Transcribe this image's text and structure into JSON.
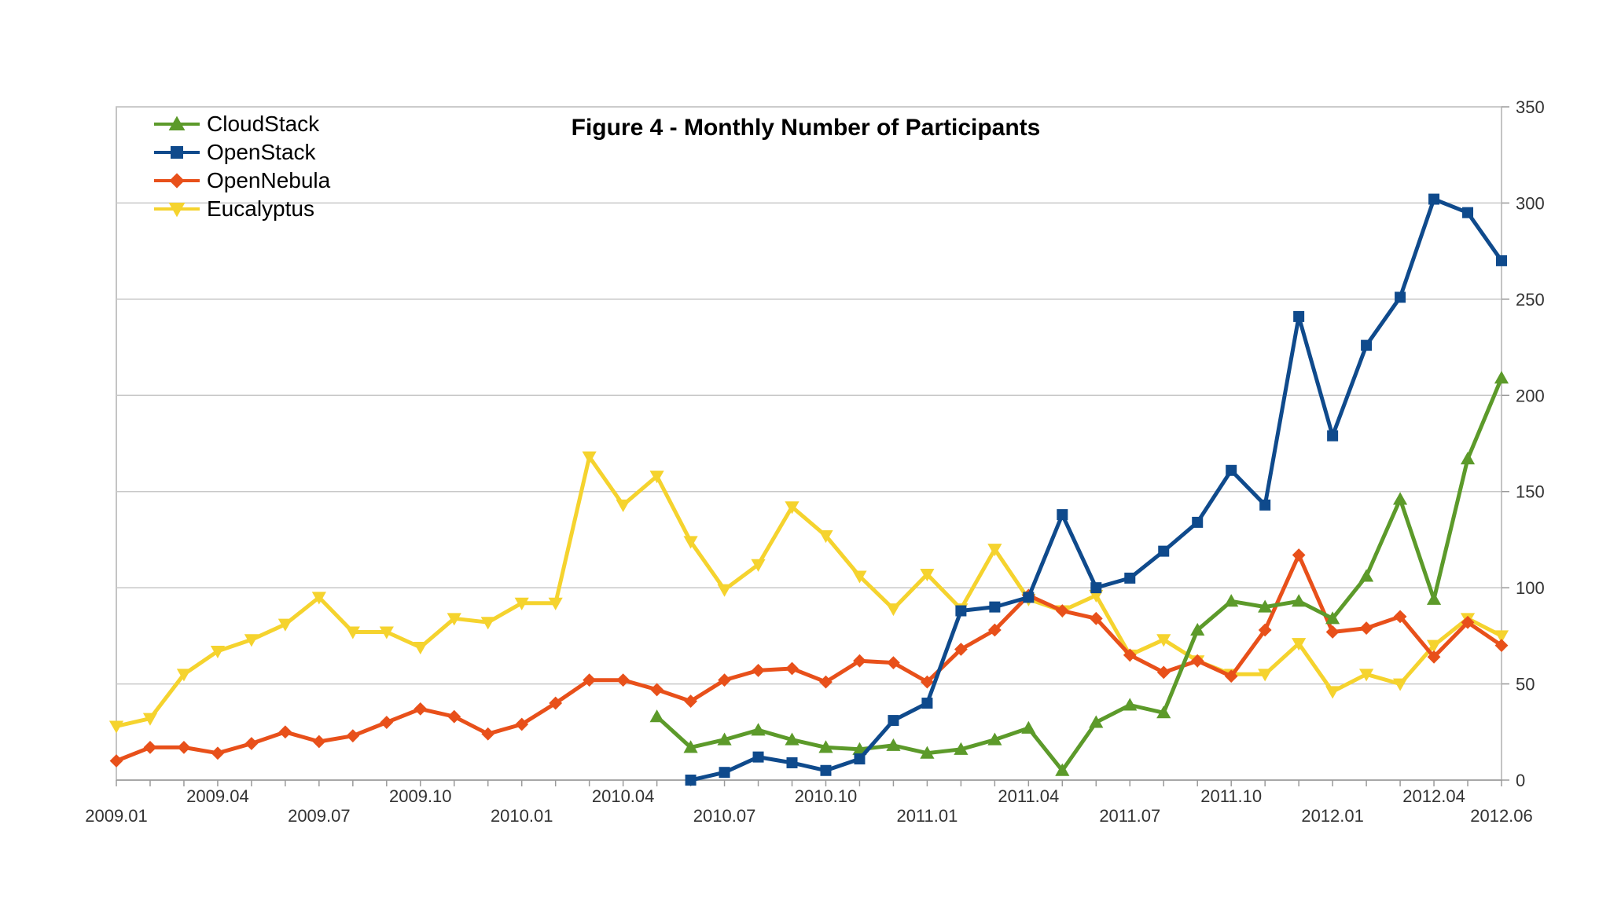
{
  "chart_data": {
    "type": "line",
    "title": "Figure 4 - Monthly Number of Participants",
    "xlabel": "",
    "ylabel": "",
    "ylim": [
      0,
      350
    ],
    "yticks": [
      0,
      50,
      100,
      150,
      200,
      250,
      300,
      350
    ],
    "y_axis_side": "right",
    "grid": true,
    "legend_position": "top-left",
    "x_tick_labels": [
      "2009.01",
      "2009.04",
      "2009.07",
      "2009.10",
      "2010.01",
      "2010.04",
      "2010.07",
      "2010.10",
      "2011.01",
      "2011.04",
      "2011.07",
      "2011.10",
      "2012.01",
      "2012.04",
      "2012.06"
    ],
    "x": [
      "2009.01",
      "2009.02",
      "2009.03",
      "2009.04",
      "2009.05",
      "2009.06",
      "2009.07",
      "2009.08",
      "2009.09",
      "2009.10",
      "2009.11",
      "2009.12",
      "2010.01",
      "2010.02",
      "2010.03",
      "2010.04",
      "2010.05",
      "2010.06",
      "2010.07",
      "2010.08",
      "2010.09",
      "2010.10",
      "2010.11",
      "2010.12",
      "2011.01",
      "2011.02",
      "2011.03",
      "2011.04",
      "2011.05",
      "2011.06",
      "2011.07",
      "2011.08",
      "2011.09",
      "2011.10",
      "2011.11",
      "2011.12",
      "2012.01",
      "2012.02",
      "2012.03",
      "2012.04",
      "2012.05",
      "2012.06"
    ],
    "series": [
      {
        "name": "CloudStack",
        "color": "#5c9a2a",
        "marker": "triangle-up",
        "values": [
          null,
          null,
          null,
          null,
          null,
          null,
          null,
          null,
          null,
          null,
          null,
          null,
          null,
          null,
          null,
          null,
          33,
          17,
          21,
          26,
          21,
          17,
          16,
          18,
          14,
          16,
          21,
          27,
          5,
          30,
          39,
          35,
          78,
          93,
          90,
          93,
          84,
          106,
          146,
          94,
          167,
          209
        ]
      },
      {
        "name": "OpenStack",
        "color": "#0f4a8c",
        "marker": "square",
        "values": [
          null,
          null,
          null,
          null,
          null,
          null,
          null,
          null,
          null,
          null,
          null,
          null,
          null,
          null,
          null,
          null,
          null,
          0,
          4,
          12,
          9,
          5,
          11,
          31,
          40,
          88,
          90,
          95,
          138,
          100,
          105,
          119,
          134,
          161,
          143,
          241,
          179,
          226,
          251,
          302,
          295,
          270
        ]
      },
      {
        "name": "OpenNebula",
        "color": "#e8501a",
        "marker": "diamond",
        "values": [
          10,
          17,
          17,
          14,
          19,
          25,
          20,
          23,
          30,
          37,
          33,
          24,
          29,
          40,
          52,
          52,
          47,
          41,
          52,
          57,
          58,
          51,
          62,
          61,
          51,
          68,
          78,
          96,
          88,
          84,
          65,
          56,
          62,
          54,
          78,
          117,
          77,
          79,
          85,
          64,
          82,
          70
        ]
      },
      {
        "name": "Eucalyptus",
        "color": "#f5d32e",
        "marker": "triangle-down",
        "values": [
          28,
          32,
          55,
          67,
          73,
          81,
          95,
          77,
          77,
          69,
          84,
          82,
          92,
          92,
          168,
          143,
          158,
          124,
          99,
          112,
          142,
          127,
          106,
          89,
          107,
          89,
          120,
          94,
          88,
          96,
          65,
          73,
          62,
          55,
          55,
          71,
          46,
          55,
          50,
          70,
          84,
          75
        ]
      }
    ]
  }
}
